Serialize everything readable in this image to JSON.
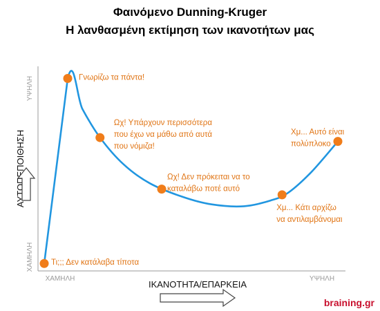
{
  "chart_data": {
    "type": "line",
    "title": "Φαινόμενο Dunning-Kruger",
    "subtitle": "Η λανθασμένη εκτίμηση των ικανοτήτων μας",
    "xlabel": "ΙΚΑΝΟΤΗΤΑ/ΕΠΑΡΚΕΙΑ",
    "ylabel": "ΑΥΤΟΠΕΠΟΙΘΗΣΗ",
    "x_ticks": [
      "ΧΑΜΗΛΗ",
      "ΥΨΗΛΗ"
    ],
    "y_ticks": [
      "ΧΑΜΗΛΗ",
      "ΥΨΗΛΗ"
    ],
    "xlim": [
      0,
      100
    ],
    "ylim": [
      0,
      100
    ],
    "grid": false,
    "line_color": "#2196e0",
    "point_color": "#f07d1a",
    "annotation_color": "#e07414",
    "curve": [
      {
        "x": 0,
        "y": 1
      },
      {
        "x": 8,
        "y": 98
      },
      {
        "x": 13,
        "y": 82
      },
      {
        "x": 19,
        "y": 67
      },
      {
        "x": 27,
        "y": 53
      },
      {
        "x": 36,
        "y": 43
      },
      {
        "x": 47,
        "y": 36
      },
      {
        "x": 57,
        "y": 32
      },
      {
        "x": 68,
        "y": 31
      },
      {
        "x": 77,
        "y": 34
      },
      {
        "x": 83,
        "y": 38
      },
      {
        "x": 91,
        "y": 49
      },
      {
        "x": 100,
        "y": 65
      }
    ],
    "points": [
      {
        "x": 0,
        "y": 1,
        "label": [
          "Τι;;; Δεν κατάλαβα τίποτα"
        ]
      },
      {
        "x": 8,
        "y": 98,
        "label": [
          "Γνωρίζω τα πάντα!"
        ]
      },
      {
        "x": 19,
        "y": 67,
        "label": [
          "Ωχ! Υπάρχουν περισσότερα",
          "που έχω να μάθω από αυτά",
          "που νόμιζα!"
        ]
      },
      {
        "x": 40,
        "y": 40,
        "label": [
          "Ωχ! Δεν πρόκειται να το",
          "καταλάβω ποτέ αυτό"
        ]
      },
      {
        "x": 81,
        "y": 37,
        "label": [
          "Χμ... Κάτι αρχίζω",
          "να αντιλαμβάνομαι"
        ]
      },
      {
        "x": 100,
        "y": 65,
        "label": [
          "Χμ... Αυτό είναι",
          "πολύπλοκο"
        ]
      }
    ]
  },
  "brand": "braining.gr"
}
